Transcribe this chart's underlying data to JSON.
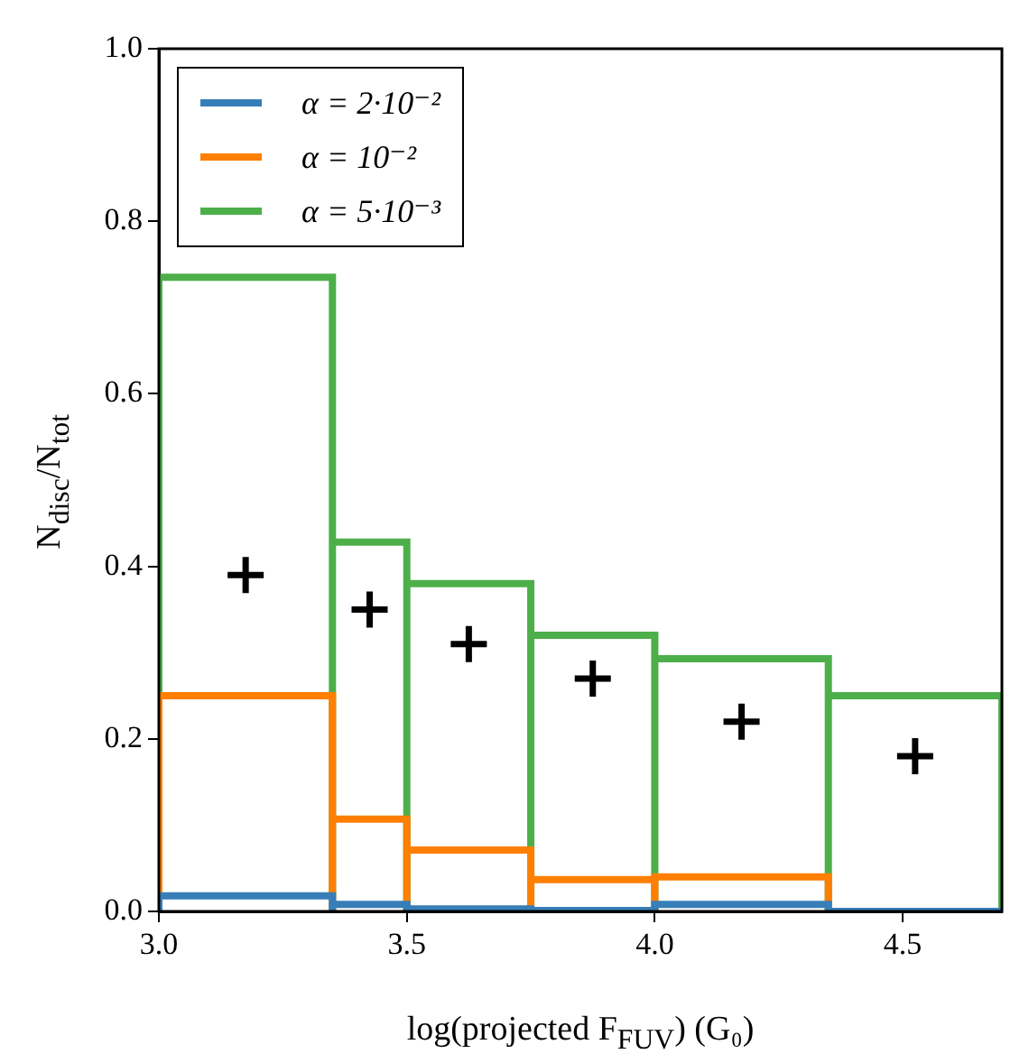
{
  "chart_data": {
    "type": "histogram",
    "xlabel": "log(projected F$_{FUV}$) (G₀)",
    "ylabel": "N$_{disc}$/N$_{tot}$",
    "bins": [
      3.0,
      3.35,
      3.5,
      3.75,
      4.0,
      4.35,
      4.7
    ],
    "series": [
      {
        "name": "α = 2·10⁻²",
        "color": "#377eb8",
        "values": [
          0.018,
          0.008,
          0.003,
          0.001,
          0.008,
          0.0
        ]
      },
      {
        "name": "α = 10⁻²",
        "color": "#ff7f00",
        "values": [
          0.25,
          0.107,
          0.071,
          0.037,
          0.04,
          0.0
        ]
      },
      {
        "name": "α = 5·10⁻³",
        "color": "#4daf4a",
        "values": [
          0.735,
          0.428,
          0.38,
          0.32,
          0.293,
          0.25
        ]
      },
      {
        "type": "scatter",
        "color": "#000000",
        "marker": "cross",
        "x": [
          3.175,
          3.425,
          3.625,
          3.875,
          4.175,
          4.525
        ],
        "values": [
          0.39,
          0.35,
          0.31,
          0.27,
          0.22,
          0.18
        ]
      }
    ],
    "xlim": [
      3.0,
      4.7
    ],
    "xticks": [
      {
        "value": 3.0,
        "label": "3.0"
      },
      {
        "value": 3.5,
        "label": "3.5"
      },
      {
        "value": 4.0,
        "label": "4.0"
      },
      {
        "value": 4.5,
        "label": "4.5"
      }
    ],
    "ylim": [
      0.0,
      1.0
    ],
    "yticks": [
      {
        "value": 0.0,
        "label": "0.0"
      },
      {
        "value": 0.2,
        "label": "0.2"
      },
      {
        "value": 0.4,
        "label": "0.4"
      },
      {
        "value": 0.6,
        "label": "0.6"
      },
      {
        "value": 0.8,
        "label": "0.8"
      },
      {
        "value": 1.0,
        "label": "1.0"
      }
    ],
    "grid": false,
    "legend": "top left"
  }
}
